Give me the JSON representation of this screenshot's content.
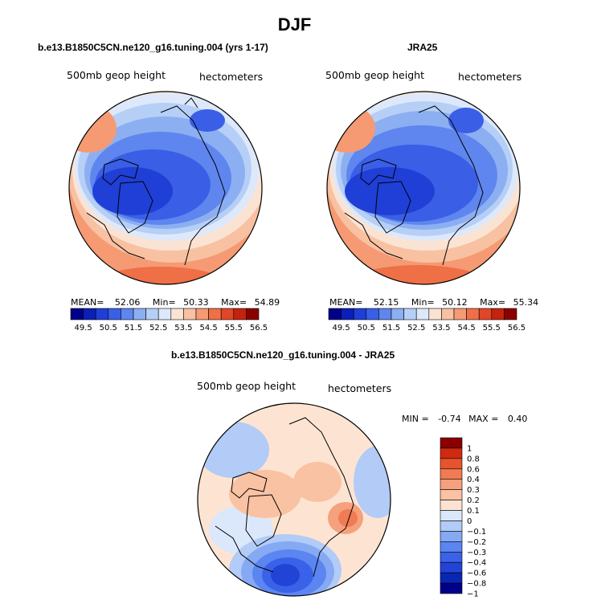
{
  "title": "DJF",
  "colors": {
    "abs_scale": [
      "#00008b",
      "#0b1fb8",
      "#1f3fd6",
      "#3a5fe6",
      "#5f86ee",
      "#8caff2",
      "#b6cff6",
      "#dde9fb",
      "#fbe3d3",
      "#f8c1a2",
      "#f59a73",
      "#ef6f47",
      "#e24628",
      "#c5230f",
      "#8b0000"
    ],
    "diff_scale": [
      "#00008b",
      "#0a26b4",
      "#2244d6",
      "#3a62e8",
      "#5b85f0",
      "#86a9f4",
      "#b2cbf7",
      "#dbe8fb",
      "#fde4d2",
      "#f9c2a3",
      "#f5a17d",
      "#f07b54",
      "#e6542e",
      "#d02a12",
      "#8b0000"
    ]
  },
  "panels": [
    {
      "title": "b.e13.B1850C5CN.ne120_g16.tuning.004 (yrs 1-17)",
      "field_label": "500mb geop height",
      "units": "hectometers",
      "mean_label": "MEAN=",
      "mean": "52.06",
      "min_label": "Min=",
      "min": "50.33",
      "max_label": "Max=",
      "max": "54.89",
      "ticks": [
        "49.5",
        "50.5",
        "51.5",
        "52.5",
        "53.5",
        "54.5",
        "55.5",
        "56.5"
      ]
    },
    {
      "title": "JRA25",
      "field_label": "500mb geop height",
      "units": "hectometers",
      "mean_label": "MEAN=",
      "mean": "52.15",
      "min_label": "Min=",
      "min": "50.12",
      "max_label": "Max=",
      "max": "55.34",
      "ticks": [
        "49.5",
        "50.5",
        "51.5",
        "52.5",
        "53.5",
        "54.5",
        "55.5",
        "56.5"
      ]
    }
  ],
  "diff": {
    "title": "b.e13.B1850C5CN.ne120_g16.tuning.004 - JRA25",
    "field_label": "500mb geop height",
    "units": "hectometers",
    "min_label": "MIN =",
    "min": "-0.74",
    "max_label": "MAX =",
    "max": "0.40",
    "ticks": [
      "1",
      "0.8",
      "0.6",
      "0.4",
      "0.3",
      "0.2",
      "0.1",
      "0",
      "-0.1",
      "-0.2",
      "-0.3",
      "-0.4",
      "-0.6",
      "-0.8",
      "-1"
    ]
  }
}
